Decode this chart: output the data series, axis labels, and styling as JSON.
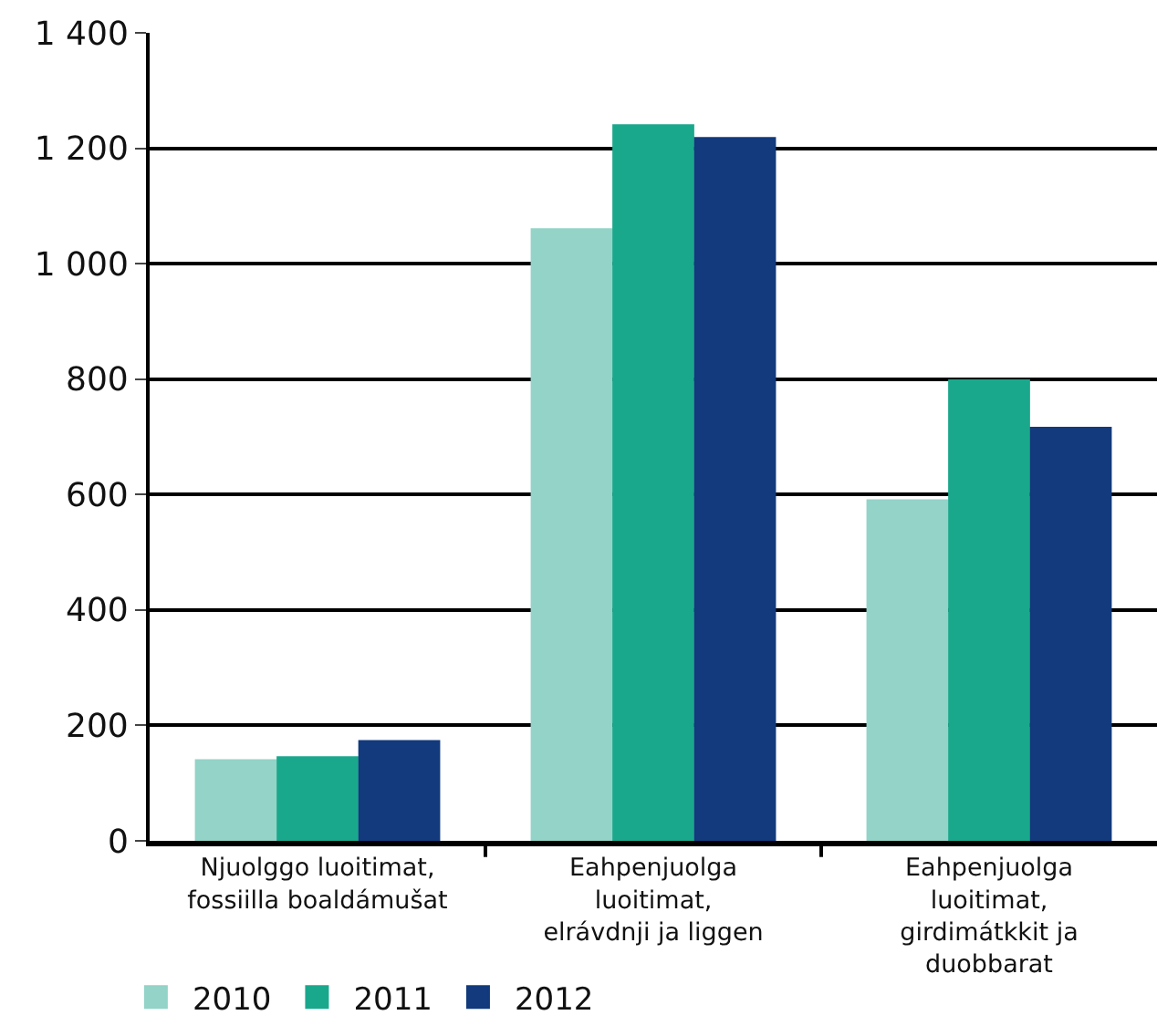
{
  "chart_data": {
    "type": "bar",
    "categories": [
      "Njuolggo luoitimat,\nfossiilla boaldámušat",
      "Eahpenjuolga\nluoitimat,\nelrávdnji ja liggen",
      "Eahpenjuolga\nluoitimat,\ngirdimátkkit ja\nduobbarat"
    ],
    "series": [
      {
        "name": "2010",
        "color": "#93d3c8",
        "values": [
          140,
          1060,
          590
        ]
      },
      {
        "name": "2011",
        "color": "#1aa88c",
        "values": [
          145,
          1240,
          798
        ]
      },
      {
        "name": "2012",
        "color": "#123a7c",
        "values": [
          173,
          1218,
          716
        ]
      }
    ],
    "ylim": [
      0,
      1400
    ],
    "yticks": [
      0,
      200,
      400,
      600,
      800,
      {
        "value": 1000,
        "label": "1 000"
      },
      {
        "value": 1200,
        "label": "1 200"
      },
      {
        "value": 1400,
        "label": "1 400"
      }
    ],
    "grid": "y",
    "legend": "bottom left"
  }
}
